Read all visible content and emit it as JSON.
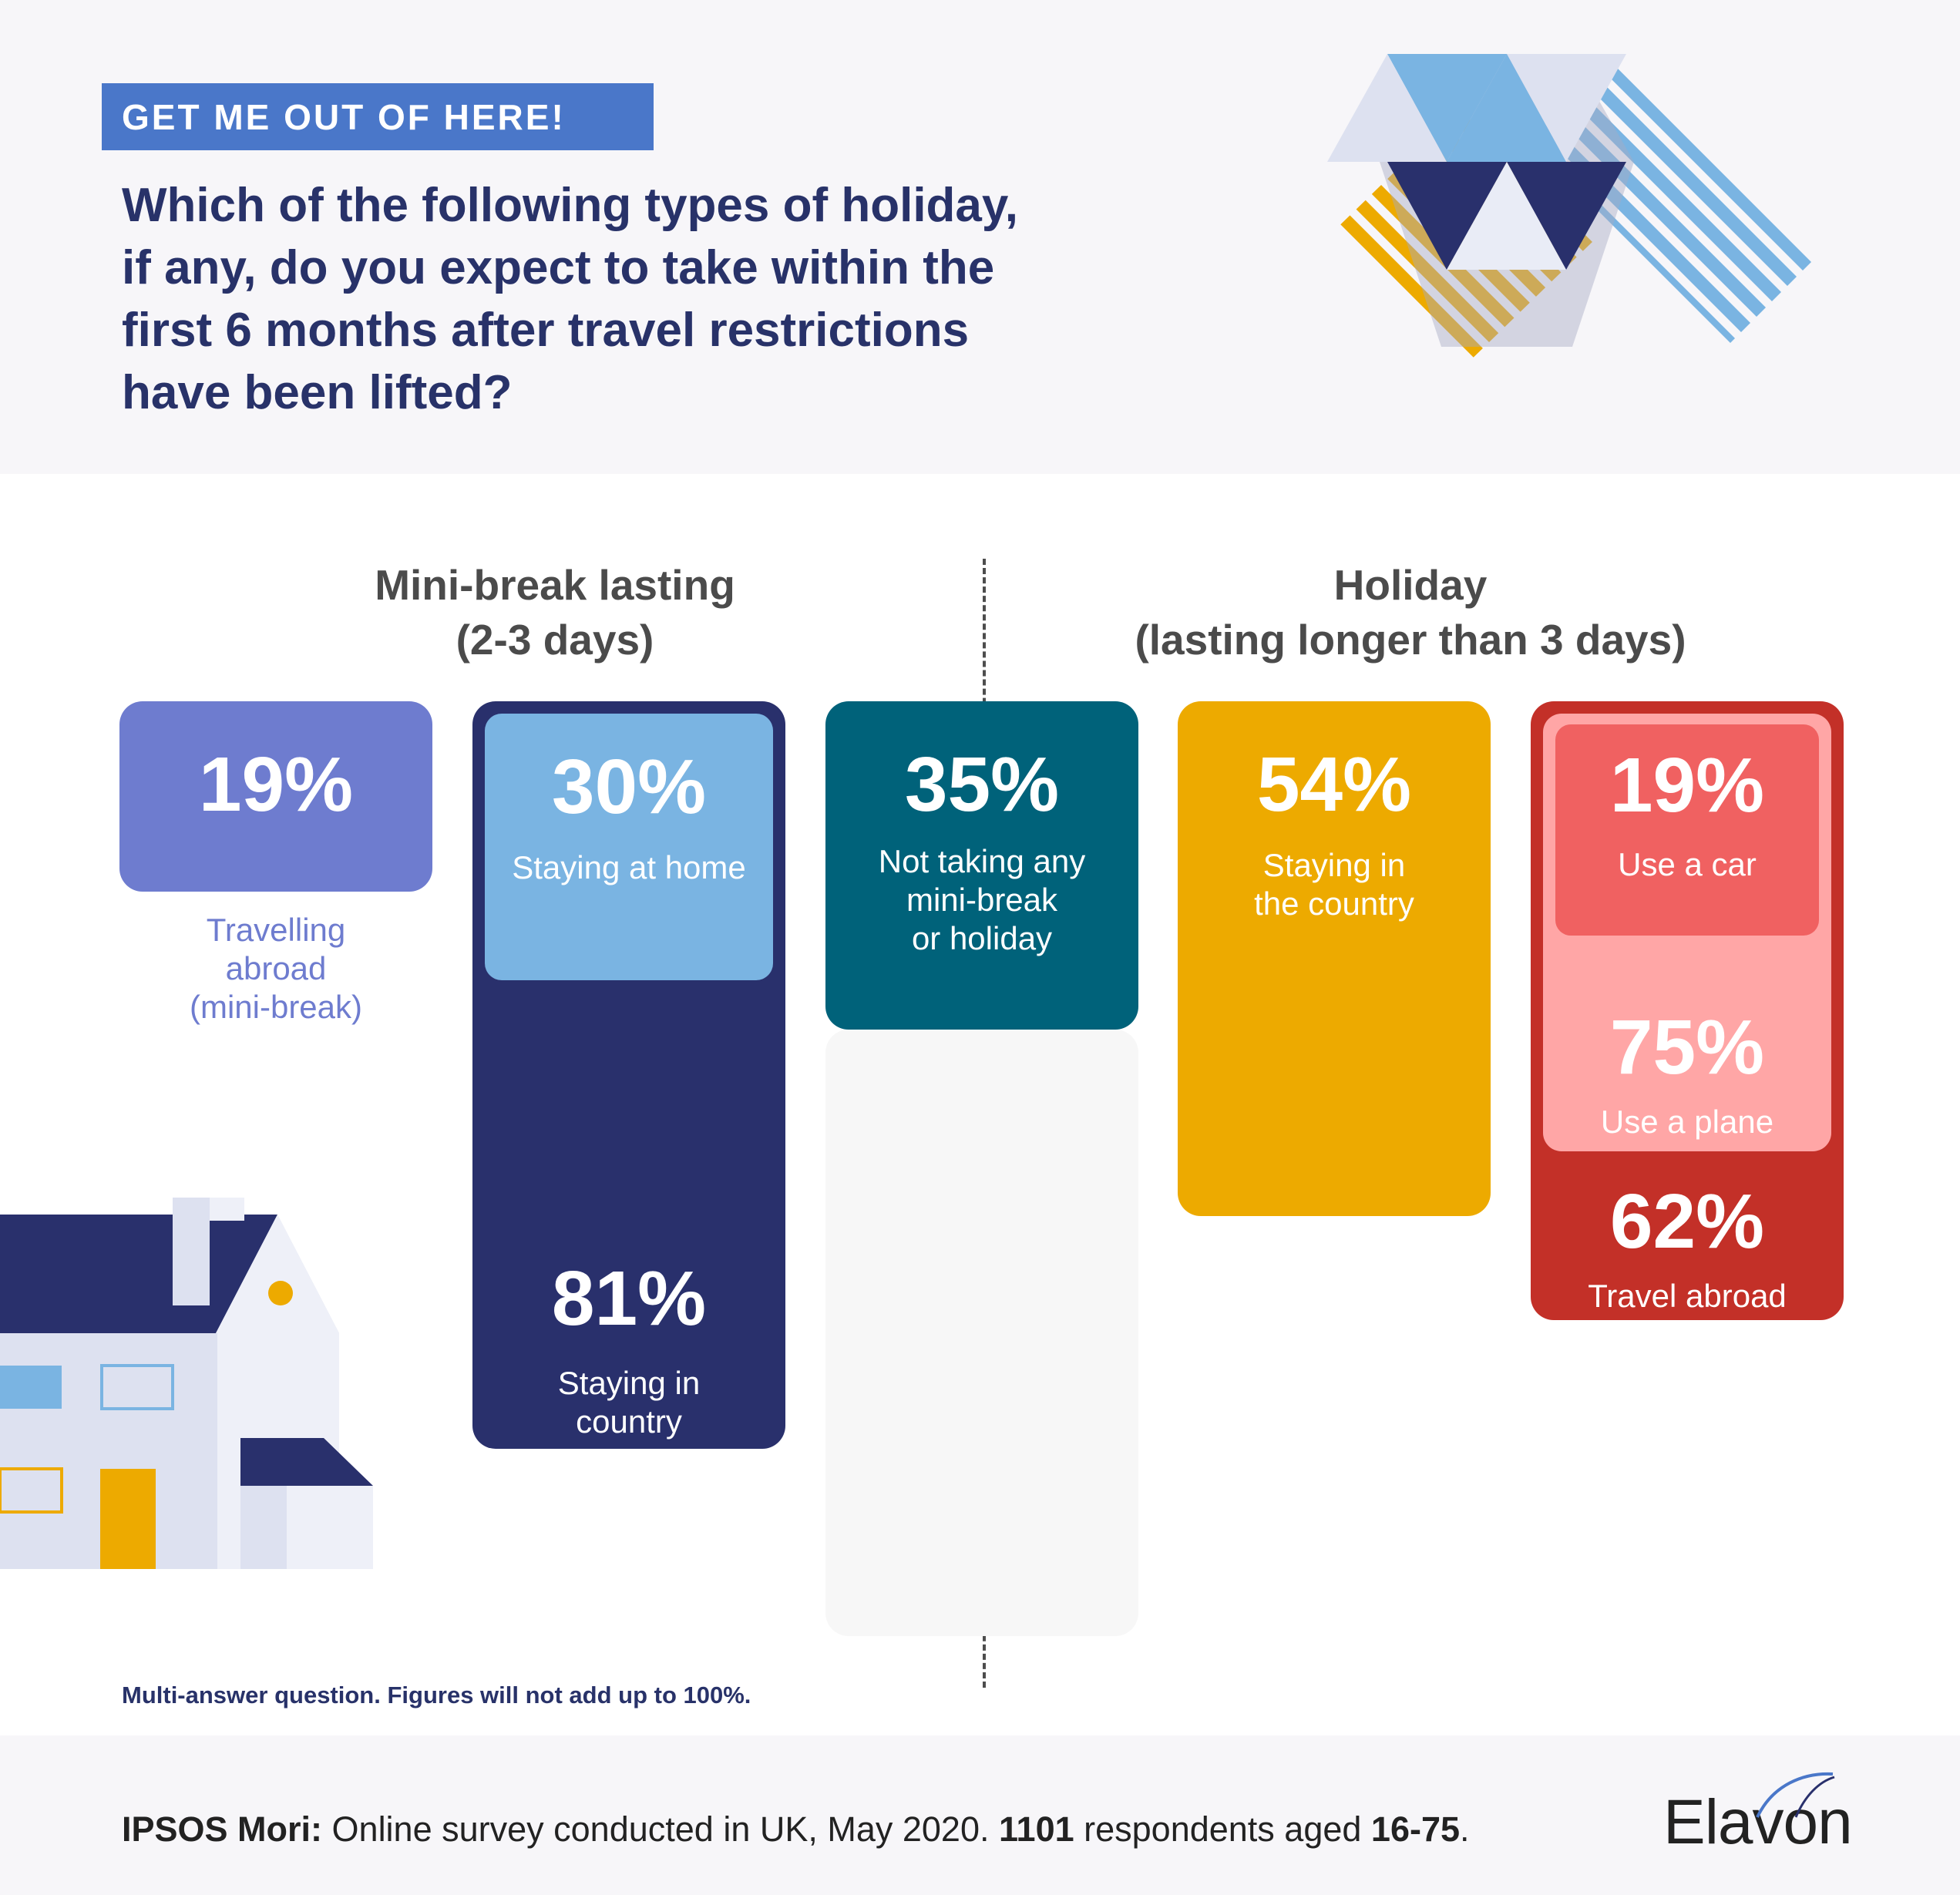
{
  "eyebrow": "GET ME OUT OF HERE!",
  "question": {
    "line1": "Which of the following types of holiday,",
    "line2": "if any, do you expect to take within the",
    "line3": "first 6 months after travel restrictions",
    "line4": "have been lifted?"
  },
  "groups": {
    "mini_break": {
      "line1": "Mini-break lasting",
      "line2": "(2-3 days)"
    },
    "holiday": {
      "line1": "Holiday",
      "line2": "(lasting longer than 3 days)"
    }
  },
  "chart_data": {
    "type": "table",
    "title": "Which of the following types of holiday, if any, do you expect to take within the first 6 months after travel restrictions have been lifted?",
    "unit": "%",
    "categories": [
      {
        "group": "Mini-break lasting (2-3 days)",
        "label": "Travelling abroad (mini-break)",
        "value": 19
      },
      {
        "group": "Mini-break lasting (2-3 days)",
        "label": "Staying in country",
        "value": 81,
        "sub": {
          "label": "Staying at home",
          "value": 30
        }
      },
      {
        "group": "",
        "label": "Not taking any mini-break or holiday",
        "value": 35
      },
      {
        "group": "Holiday (lasting longer than 3 days)",
        "label": "Staying in the country",
        "value": 54
      },
      {
        "group": "Holiday (lasting longer than 3 days)",
        "label": "Travel abroad",
        "value": 62,
        "sub": [
          {
            "label": "Use a plane",
            "value": 75
          },
          {
            "label": "Use a car",
            "value": 19
          }
        ]
      }
    ]
  },
  "cards": {
    "abroad_mini": {
      "value": "19%",
      "label_l1": "Travelling",
      "label_l2": "abroad",
      "label_l3": "(mini-break)"
    },
    "country_mini": {
      "value": "81%",
      "label_l1": "Staying in",
      "label_l2": "country"
    },
    "home": {
      "value": "30%",
      "label": "Staying at home"
    },
    "none": {
      "value": "35%",
      "label_l1": "Not taking any",
      "label_l2": "mini-break",
      "label_l3": "or holiday"
    },
    "country_holiday": {
      "value": "54%",
      "label_l1": "Staying in",
      "label_l2": "the country"
    },
    "car": {
      "value": "19%",
      "label": "Use a car"
    },
    "plane": {
      "value": "75%",
      "label": "Use a plane"
    },
    "abroad_holiday": {
      "value": "62%",
      "label": "Travel abroad"
    }
  },
  "note": "Multi-answer question. Figures will not add up to 100%.",
  "source": {
    "org": "IPSOS Mori:",
    "text1": " Online survey conducted in UK, May 2020. ",
    "respondents": "1101",
    "text2": " respondents aged ",
    "ages": "16-75",
    "end": "."
  },
  "brand": "Elavon",
  "colors": {
    "navy": "#29306c",
    "lavender": "#6e7ccf",
    "sky": "#7ab4e2",
    "teal": "#00627a",
    "mustard": "#edaa00",
    "red": "#c33028",
    "coral": "#f06161",
    "pink": "#ffa6a6"
  }
}
